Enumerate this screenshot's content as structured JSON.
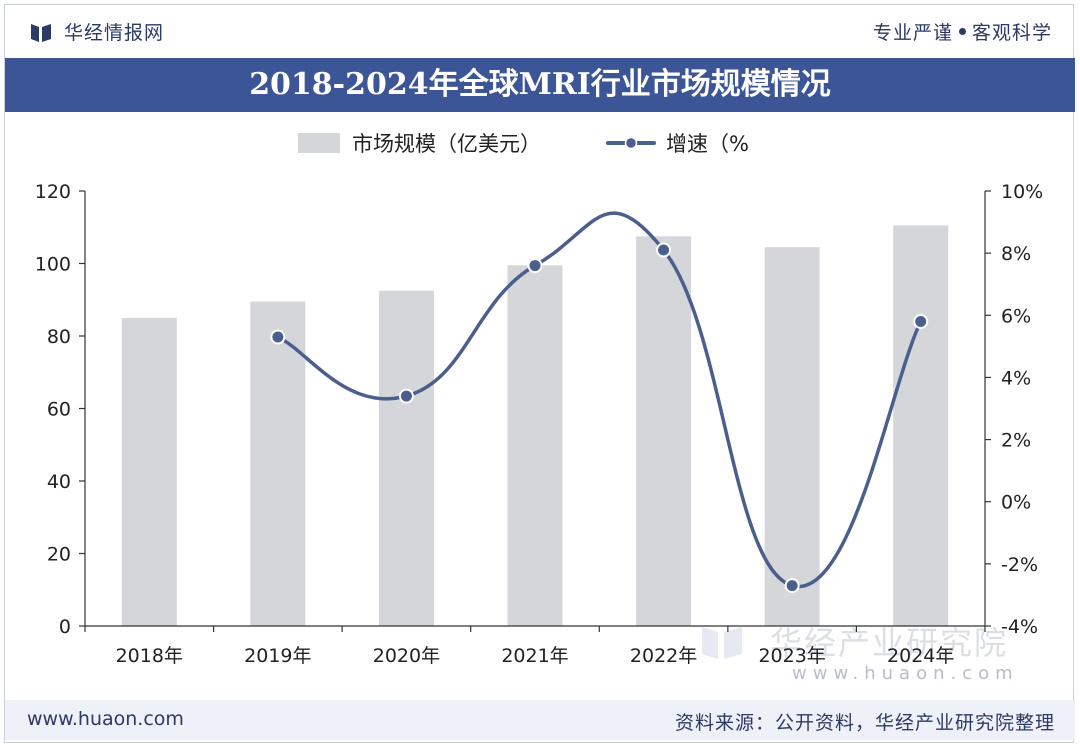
{
  "header": {
    "brand": "华经情报网",
    "slogan_left": "专业严谨",
    "slogan_right": "客观科学"
  },
  "title": "2018-2024年全球MRI行业市场规模情况",
  "footer": {
    "website": "www.huaon.com",
    "source": "资料来源：公开资料，华经产业研究院整理"
  },
  "watermark": {
    "name": "华经产业研究院",
    "url": "www.huaon.com"
  },
  "colors": {
    "title_bg": "#3b5596",
    "bar": "#d4d6da",
    "line": "#4b5f8c",
    "text_brand": "#2b3a66"
  },
  "chart_data": {
    "type": "bar+line",
    "title": "2018-2024年全球MRI行业市场规模情况",
    "categories": [
      "2018年",
      "2019年",
      "2020年",
      "2021年",
      "2022年",
      "2023年",
      "2024年"
    ],
    "series": [
      {
        "name": "市场规模（亿美元）",
        "type": "bar",
        "axis": "left",
        "values": [
          85,
          89.5,
          92.5,
          99.5,
          107.5,
          104.5,
          110.5
        ]
      },
      {
        "name": "增速（%",
        "type": "line",
        "axis": "right",
        "smooth": true,
        "values": [
          null,
          5.3,
          3.4,
          7.6,
          8.1,
          -2.7,
          5.8
        ]
      }
    ],
    "left_axis": {
      "min": 0,
      "max": 120,
      "step": 20,
      "ticks": [
        "0",
        "20",
        "40",
        "60",
        "80",
        "100",
        "120"
      ]
    },
    "right_axis": {
      "min": -4,
      "max": 10,
      "step": 2,
      "ticks": [
        "-4%",
        "-2%",
        "0%",
        "2%",
        "4%",
        "6%",
        "8%",
        "10%"
      ]
    },
    "legend_position": "top-center",
    "grid": false
  }
}
